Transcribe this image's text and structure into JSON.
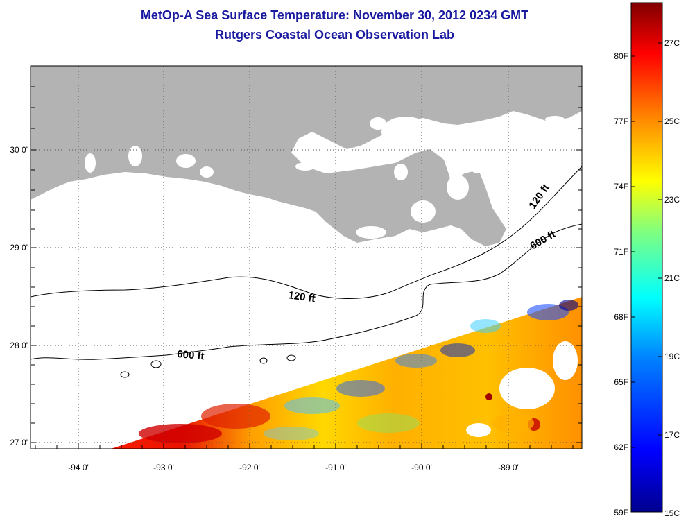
{
  "title": {
    "line1": "MetOp-A Sea Surface Temperature:  November 30, 2012 0234 GMT",
    "line2": "Rutgers Coastal Ocean Observation Lab"
  },
  "map": {
    "lat_ticks": [
      "30 0'",
      "29 0'",
      "28 0'",
      "27 0'"
    ],
    "lon_ticks": [
      "-94 0'",
      "-93 0'",
      "-92 0'",
      "-91 0'",
      "-90 0'",
      "-89 0'"
    ],
    "contour_labels": [
      "120 ft",
      "600 ft",
      "120 ft",
      "600 ft"
    ],
    "colors": {
      "land": "#b3b3b3",
      "water": "#ffffff",
      "grid": "#555555"
    }
  },
  "colorbar": {
    "fahrenheit_labels": [
      "80F",
      "77F",
      "74F",
      "71F",
      "68F",
      "65F",
      "62F",
      "59F"
    ],
    "celsius_labels": [
      "27C",
      "25C",
      "23C",
      "21C",
      "19C",
      "17C",
      "15C"
    ],
    "range_c": [
      15,
      28
    ],
    "colors": [
      "#00008f",
      "#0000ff",
      "#0080ff",
      "#00ffff",
      "#80ff80",
      "#ffff00",
      "#ff8000",
      "#ff0000",
      "#800000"
    ]
  }
}
